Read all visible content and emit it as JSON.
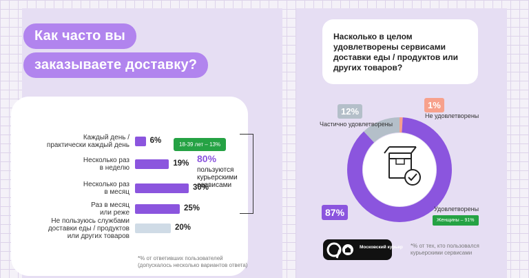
{
  "left": {
    "title_line1": "Как часто вы",
    "title_line2": "заказываете доставку?",
    "age_badge": "18-39 лет – 13%",
    "courier_pct": "80%",
    "courier_text": "пользуются курьерскими сервисами",
    "footnote": "*% от ответивших пользователей (допускалось несколько вариантов ответа)"
  },
  "right": {
    "question": "Насколько в целом удовлетворены сервисами доставки еды / продуктов или других товаров?",
    "partial_pct": "12%",
    "partial_label": "Частично удовлетворены",
    "unsat_pct": "1%",
    "unsat_label": "Не удовлетворены",
    "sat_pct": "87%",
    "sat_label": "Удовлетворены",
    "women_badge": "Женщины – 91%",
    "logo_text": "Московский курьер",
    "footnote": "*% от тех, кто пользовался курьерскими сервисами"
  },
  "colors": {
    "accent": "#8b55de",
    "title_pill": "#b184ee",
    "badge_green": "#25a244",
    "partial": "#b4bfc9",
    "unsatisfied": "#f7a18c",
    "last_bar": "#cfdbe6"
  },
  "chart_data": [
    {
      "type": "bar",
      "orientation": "horizontal",
      "title": "Как часто вы заказываете доставку?",
      "categories": [
        "Каждый день / практически каждый день",
        "Несколько раз в неделю",
        "Несколько раз в месяц",
        "Раз в месяц или реже",
        "Не пользуюсь службами доставки еды / продуктов или других товаров"
      ],
      "category_lines": [
        [
          "Каждый день /",
          "практически каждый день"
        ],
        [
          "Несколько раз",
          "в неделю"
        ],
        [
          "Несколько раз",
          "в месяц"
        ],
        [
          "Раз в месяц",
          "или реже"
        ],
        [
          "Не пользуюсь службами",
          "доставки еды / продуктов",
          "или других товаров"
        ]
      ],
      "values": [
        6,
        19,
        30,
        25,
        20
      ],
      "value_labels": [
        "6%",
        "19%",
        "30%",
        "25%",
        "20%"
      ],
      "grid": false
    },
    {
      "type": "pie",
      "style": "donut",
      "title": "Насколько в целом удовлетворены сервисами доставки еды / продуктов или других товаров?",
      "categories": [
        "Удовлетворены",
        "Частично удовлетворены",
        "Не удовлетворены"
      ],
      "values": [
        87,
        12,
        1
      ],
      "value_labels": [
        "87%",
        "12%",
        "1%"
      ],
      "colors": [
        "#8b55de",
        "#b4bfc9",
        "#f7a18c"
      ]
    }
  ]
}
